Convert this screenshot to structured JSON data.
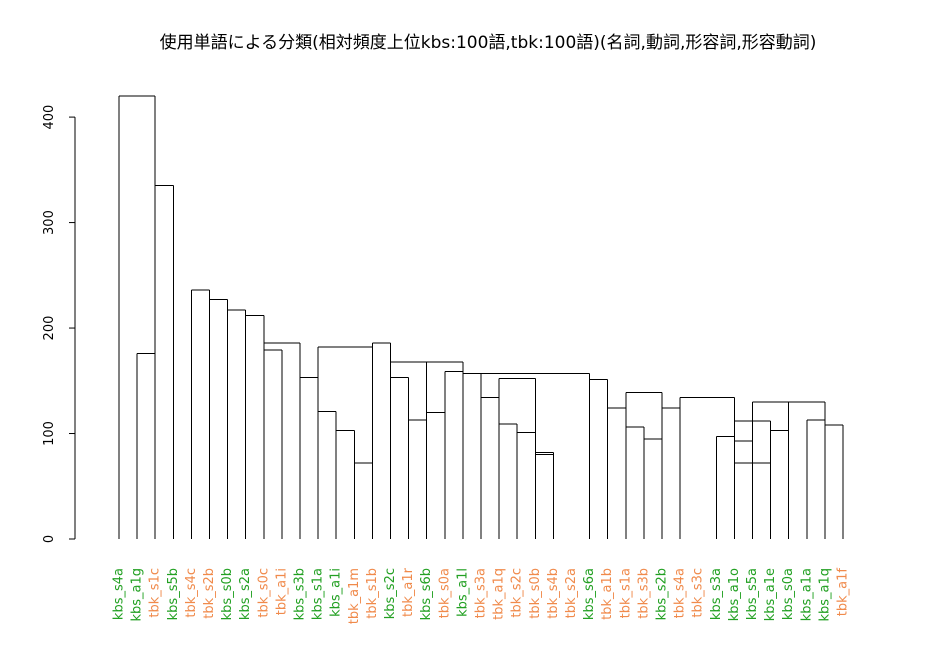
{
  "chart_data": {
    "type": "dendrogram",
    "title": "使用単語による分類(相対頻度上位kbs:100語,tbk:100語)(名詞,動詞,形容詞,形容動詞)",
    "xlabel": "",
    "ylabel": "",
    "ylim": [
      0,
      420
    ],
    "y_ticks": [
      0,
      100,
      200,
      300,
      400
    ],
    "colors": {
      "kbs": "#22a022",
      "tbk": "#f08a4b"
    },
    "leaves": [
      {
        "name": "kbs_s4a",
        "group": "kbs"
      },
      {
        "name": "kbs_a1g",
        "group": "kbs"
      },
      {
        "name": "tbk_s1c",
        "group": "tbk"
      },
      {
        "name": "kbs_s5b",
        "group": "kbs"
      },
      {
        "name": "tbk_s4c",
        "group": "tbk"
      },
      {
        "name": "tbk_s2b",
        "group": "tbk"
      },
      {
        "name": "kbs_s0b",
        "group": "kbs"
      },
      {
        "name": "kbs_s2a",
        "group": "kbs"
      },
      {
        "name": "tbk_s0c",
        "group": "tbk"
      },
      {
        "name": "tbk_a1i",
        "group": "tbk"
      },
      {
        "name": "kbs_s3b",
        "group": "kbs"
      },
      {
        "name": "kbs_s1a",
        "group": "kbs"
      },
      {
        "name": "kbs_a1i",
        "group": "kbs"
      },
      {
        "name": "tbk_a1m",
        "group": "tbk"
      },
      {
        "name": "tbk_s1b",
        "group": "tbk"
      },
      {
        "name": "kbs_s2c",
        "group": "kbs"
      },
      {
        "name": "tbk_a1r",
        "group": "tbk"
      },
      {
        "name": "kbs_s6b",
        "group": "kbs"
      },
      {
        "name": "tbk_s0a",
        "group": "tbk"
      },
      {
        "name": "kbs_a1l",
        "group": "kbs"
      },
      {
        "name": "tbk_s3a",
        "group": "tbk"
      },
      {
        "name": "tbk_a1q",
        "group": "tbk"
      },
      {
        "name": "tbk_s2c",
        "group": "tbk"
      },
      {
        "name": "tbk_s0b",
        "group": "tbk"
      },
      {
        "name": "tbk_s4b",
        "group": "tbk"
      },
      {
        "name": "tbk_s2a",
        "group": "tbk"
      },
      {
        "name": "kbs_s6a",
        "group": "kbs"
      },
      {
        "name": "tbk_a1b",
        "group": "tbk"
      },
      {
        "name": "tbk_s1a",
        "group": "tbk"
      },
      {
        "name": "tbk_s3b",
        "group": "tbk"
      },
      {
        "name": "kbs_s2b",
        "group": "kbs"
      },
      {
        "name": "tbk_s4a",
        "group": "tbk"
      },
      {
        "name": "tbk_s3c",
        "group": "tbk"
      },
      {
        "name": "kbs_s3a",
        "group": "kbs"
      },
      {
        "name": "kbs_a1o",
        "group": "kbs"
      },
      {
        "name": "kbs_s5a",
        "group": "kbs"
      },
      {
        "name": "kbs_a1e",
        "group": "kbs"
      },
      {
        "name": "kbs_s0a",
        "group": "kbs"
      },
      {
        "name": "kbs_a1a",
        "group": "kbs"
      },
      {
        "name": "kbs_a1q",
        "group": "kbs"
      },
      {
        "name": "tbk_a1f",
        "group": "tbk"
      }
    ],
    "merges": [
      [
        34,
        35,
        72
      ],
      [
        12,
        13,
        103
      ],
      [
        23,
        24,
        82
      ],
      [
        1,
        2,
        176
      ],
      [
        4,
        5,
        236
      ],
      [
        5,
        6,
        227
      ],
      [
        6,
        7,
        217
      ],
      [
        7,
        8,
        212
      ],
      [
        8,
        9,
        179
      ],
      [
        8,
        10,
        186
      ],
      [
        10,
        11,
        153
      ],
      [
        11,
        12,
        121
      ],
      [
        13,
        14,
        72
      ],
      [
        11,
        14,
        182
      ],
      [
        14,
        15,
        186
      ],
      [
        15,
        16,
        153
      ],
      [
        16,
        17,
        113
      ],
      [
        15,
        17,
        168
      ],
      [
        17,
        18,
        120
      ],
      [
        18,
        19,
        159
      ],
      [
        15,
        19,
        168
      ],
      [
        19,
        20,
        157
      ],
      [
        20,
        21,
        134
      ],
      [
        21,
        22,
        109
      ],
      [
        22,
        23,
        101
      ],
      [
        23,
        24,
        80
      ],
      [
        21,
        23,
        152
      ],
      [
        20,
        26,
        157
      ],
      [
        26,
        27,
        151
      ],
      [
        27,
        28,
        124
      ],
      [
        28,
        29,
        106
      ],
      [
        29,
        30,
        95
      ],
      [
        28,
        30,
        139
      ],
      [
        30,
        31,
        124
      ],
      [
        31,
        34,
        134
      ],
      [
        33,
        34,
        97
      ],
      [
        34,
        35,
        93
      ],
      [
        35,
        36,
        72
      ],
      [
        34,
        36,
        112
      ],
      [
        36,
        37,
        103
      ],
      [
        35,
        37,
        130
      ],
      [
        38,
        39,
        113
      ],
      [
        39,
        40,
        108
      ],
      [
        37,
        39,
        130
      ],
      [
        0,
        2,
        420
      ],
      [
        2,
        3,
        335
      ]
    ]
  }
}
